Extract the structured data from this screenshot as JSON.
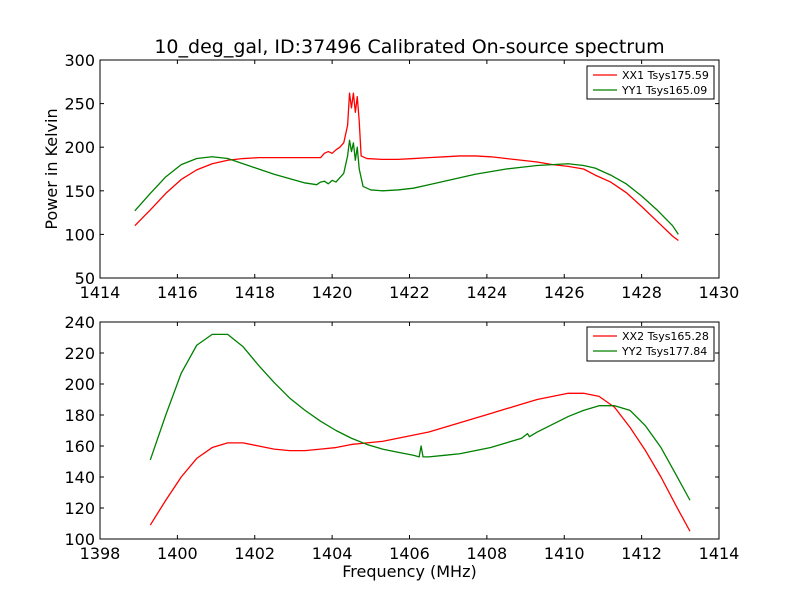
{
  "chart_data": [
    {
      "type": "line",
      "title": "10_deg_gal, ID:37496 Calibrated On-source spectrum",
      "xlabel": "",
      "ylabel": "Power in Kelvin",
      "xlim": [
        1414,
        1430
      ],
      "ylim": [
        50,
        300
      ],
      "xticks": [
        1414,
        1416,
        1418,
        1420,
        1422,
        1424,
        1426,
        1428,
        1430
      ],
      "yticks": [
        50,
        100,
        150,
        200,
        250,
        300
      ],
      "legend_position": "top-right",
      "series": [
        {
          "name": "XX1 Tsys175.59",
          "color": "#ff0000",
          "x": [
            1414.9,
            1415.3,
            1415.7,
            1416.1,
            1416.5,
            1416.9,
            1417.3,
            1417.7,
            1418.1,
            1418.5,
            1418.9,
            1419.3,
            1419.7,
            1419.8,
            1419.9,
            1420.0,
            1420.1,
            1420.2,
            1420.3,
            1420.4,
            1420.45,
            1420.5,
            1420.55,
            1420.6,
            1420.65,
            1420.7,
            1420.75,
            1420.9,
            1421.3,
            1421.7,
            1422.1,
            1422.5,
            1422.9,
            1423.3,
            1423.7,
            1424.1,
            1424.5,
            1424.9,
            1425.3,
            1425.7,
            1426.1,
            1426.5,
            1426.8,
            1427.2,
            1427.6,
            1428.0,
            1428.4,
            1428.8,
            1428.95
          ],
          "values": [
            110,
            128,
            147,
            163,
            174,
            181,
            185,
            187,
            188,
            188,
            188,
            188,
            188,
            193,
            195,
            193,
            197,
            200,
            205,
            225,
            262,
            245,
            262,
            240,
            258,
            230,
            190,
            187,
            186,
            186,
            187,
            188,
            189,
            190,
            190,
            189,
            187,
            185,
            183,
            180,
            178,
            175,
            168,
            160,
            148,
            132,
            115,
            98,
            93
          ]
        },
        {
          "name": "YY1 Tsys165.09",
          "color": "#008000",
          "x": [
            1414.9,
            1415.3,
            1415.7,
            1416.1,
            1416.5,
            1416.9,
            1417.3,
            1417.7,
            1418.1,
            1418.5,
            1418.9,
            1419.3,
            1419.6,
            1419.7,
            1419.8,
            1419.9,
            1420.0,
            1420.1,
            1420.2,
            1420.3,
            1420.4,
            1420.45,
            1420.5,
            1420.55,
            1420.6,
            1420.65,
            1420.7,
            1420.8,
            1421.0,
            1421.3,
            1421.7,
            1422.1,
            1422.5,
            1422.9,
            1423.3,
            1423.7,
            1424.1,
            1424.5,
            1424.9,
            1425.3,
            1425.7,
            1426.1,
            1426.5,
            1426.8,
            1427.2,
            1427.6,
            1428.0,
            1428.4,
            1428.8,
            1428.95
          ],
          "values": [
            127,
            147,
            166,
            180,
            187,
            189,
            187,
            181,
            175,
            169,
            164,
            159,
            157,
            160,
            161,
            158,
            162,
            160,
            165,
            170,
            190,
            208,
            195,
            205,
            185,
            200,
            175,
            155,
            151,
            150,
            151,
            153,
            157,
            161,
            165,
            169,
            172,
            175,
            177,
            179,
            180,
            181,
            179,
            176,
            168,
            158,
            144,
            128,
            110,
            100
          ]
        }
      ]
    },
    {
      "type": "line",
      "title": "",
      "xlabel": "Frequency (MHz)",
      "ylabel": "",
      "xlim": [
        1398,
        1414
      ],
      "ylim": [
        100,
        240
      ],
      "xticks": [
        1398,
        1400,
        1402,
        1404,
        1406,
        1408,
        1410,
        1412,
        1414
      ],
      "yticks": [
        100,
        120,
        140,
        160,
        180,
        200,
        220,
        240
      ],
      "legend_position": "top-right",
      "series": [
        {
          "name": "XX2 Tsys165.28",
          "color": "#ff0000",
          "x": [
            1399.3,
            1399.7,
            1400.1,
            1400.5,
            1400.9,
            1401.3,
            1401.7,
            1402.1,
            1402.5,
            1402.9,
            1403.3,
            1403.7,
            1404.1,
            1404.5,
            1404.9,
            1405.3,
            1405.7,
            1406.1,
            1406.5,
            1406.9,
            1407.3,
            1407.7,
            1408.1,
            1408.5,
            1408.9,
            1409.3,
            1409.7,
            1410.1,
            1410.5,
            1410.9,
            1411.3,
            1411.7,
            1412.1,
            1412.5,
            1412.9,
            1413.25
          ],
          "values": [
            109,
            125,
            140,
            152,
            159,
            162,
            162,
            160,
            158,
            157,
            157,
            158,
            159,
            161,
            162,
            163,
            165,
            167,
            169,
            172,
            175,
            178,
            181,
            184,
            187,
            190,
            192,
            194,
            194,
            192,
            185,
            172,
            157,
            140,
            121,
            105
          ]
        },
        {
          "name": "YY2 Tsys177.84",
          "color": "#008000",
          "x": [
            1399.3,
            1399.7,
            1400.1,
            1400.5,
            1400.9,
            1401.3,
            1401.7,
            1402.1,
            1402.5,
            1402.9,
            1403.3,
            1403.7,
            1404.1,
            1404.5,
            1404.9,
            1405.3,
            1405.7,
            1406.1,
            1406.25,
            1406.3,
            1406.35,
            1406.5,
            1406.9,
            1407.3,
            1407.7,
            1408.1,
            1408.5,
            1408.9,
            1409.0,
            1409.05,
            1409.1,
            1409.3,
            1409.7,
            1410.1,
            1410.5,
            1410.9,
            1411.3,
            1411.7,
            1412.1,
            1412.5,
            1412.9,
            1413.25
          ],
          "values": [
            151,
            180,
            207,
            225,
            232,
            232,
            224,
            212,
            201,
            191,
            183,
            176,
            170,
            165,
            161,
            158,
            156,
            154,
            153,
            160,
            153,
            153,
            154,
            155,
            157,
            159,
            162,
            165,
            167,
            168,
            166,
            169,
            174,
            179,
            183,
            186,
            186,
            183,
            173,
            159,
            141,
            125
          ]
        }
      ]
    }
  ]
}
